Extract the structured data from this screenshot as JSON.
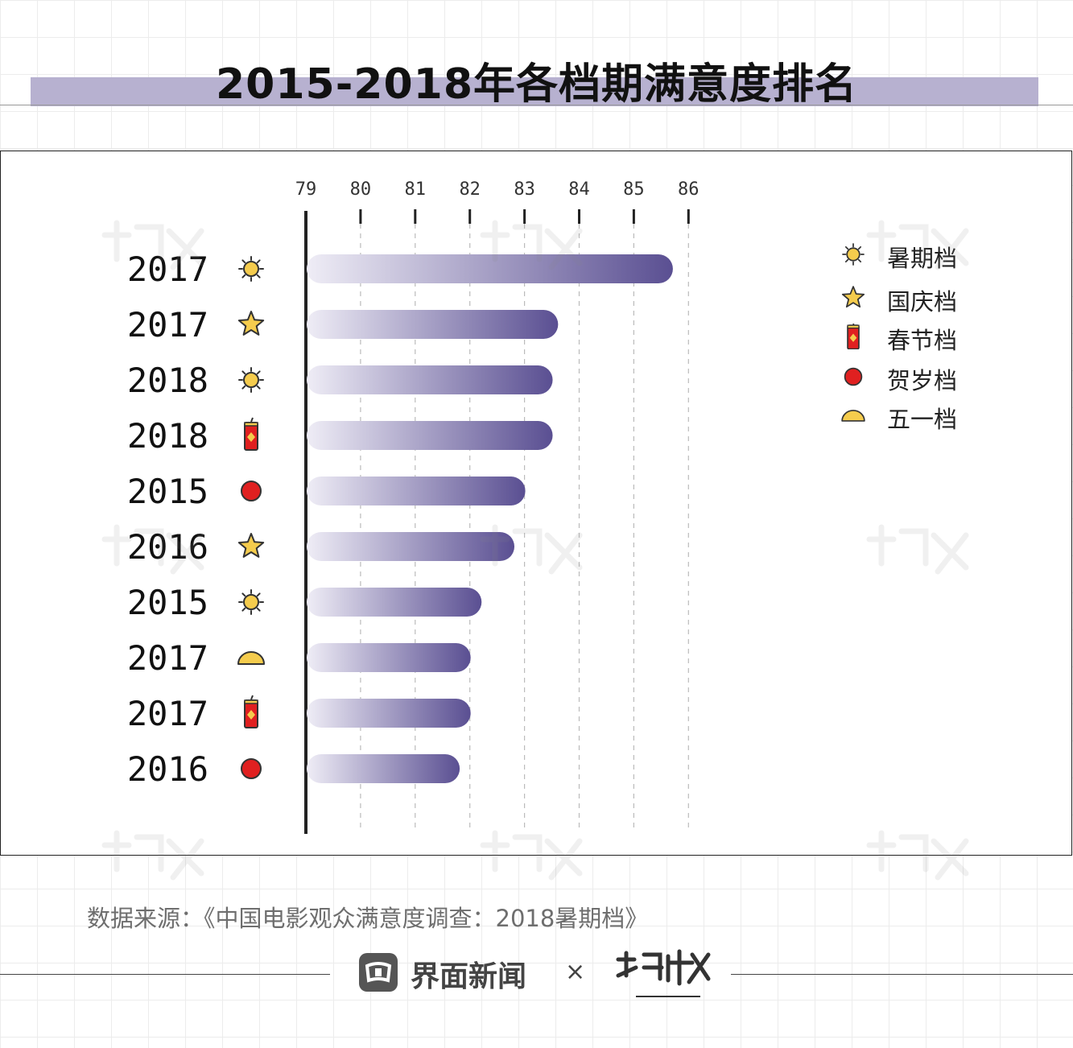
{
  "title": "2015-2018年各档期满意度排名",
  "source": "数据来源：《中国电影观众满意度调查：2018暑期档》",
  "brand": {
    "name": "界面新闻",
    "separator": "×",
    "logo_icon": "jiemian-logo-icon"
  },
  "colors": {
    "bar_start": "#efedf6",
    "bar_end": "#5a4f92",
    "band": "#b7b1d0",
    "red": "#e02020",
    "gold": "#f5cc4d"
  },
  "legend": [
    {
      "label": "暑期档",
      "icon": "sun-icon"
    },
    {
      "label": "国庆档",
      "icon": "star-icon"
    },
    {
      "label": "春节档",
      "icon": "firecracker-icon"
    },
    {
      "label": "贺岁档",
      "icon": "red-circle-icon"
    },
    {
      "label": "五一档",
      "icon": "half-dome-icon"
    }
  ],
  "chart_data": {
    "type": "bar",
    "orientation": "horizontal",
    "title": "2015-2018年各档期满意度排名",
    "xlabel": "",
    "ylabel": "",
    "xlim": [
      79,
      86
    ],
    "ticks": [
      79,
      80,
      81,
      82,
      83,
      84,
      85,
      86
    ],
    "grid": true,
    "legend_position": "right",
    "bars": [
      {
        "year": "2017",
        "period": "暑期档",
        "icon": "sun-icon",
        "value": 85.7
      },
      {
        "year": "2017",
        "period": "国庆档",
        "icon": "star-icon",
        "value": 83.6
      },
      {
        "year": "2018",
        "period": "暑期档",
        "icon": "sun-icon",
        "value": 83.5
      },
      {
        "year": "2018",
        "period": "春节档",
        "icon": "firecracker-icon",
        "value": 83.5
      },
      {
        "year": "2015",
        "period": "贺岁档",
        "icon": "red-circle-icon",
        "value": 83.0
      },
      {
        "year": "2016",
        "period": "国庆档",
        "icon": "star-icon",
        "value": 82.8
      },
      {
        "year": "2015",
        "period": "暑期档",
        "icon": "sun-icon",
        "value": 82.2
      },
      {
        "year": "2017",
        "period": "五一档",
        "icon": "half-dome-icon",
        "value": 82.0
      },
      {
        "year": "2017",
        "period": "春节档",
        "icon": "firecracker-icon",
        "value": 82.0
      },
      {
        "year": "2016",
        "period": "贺岁档",
        "icon": "red-circle-icon",
        "value": 81.8
      }
    ]
  }
}
